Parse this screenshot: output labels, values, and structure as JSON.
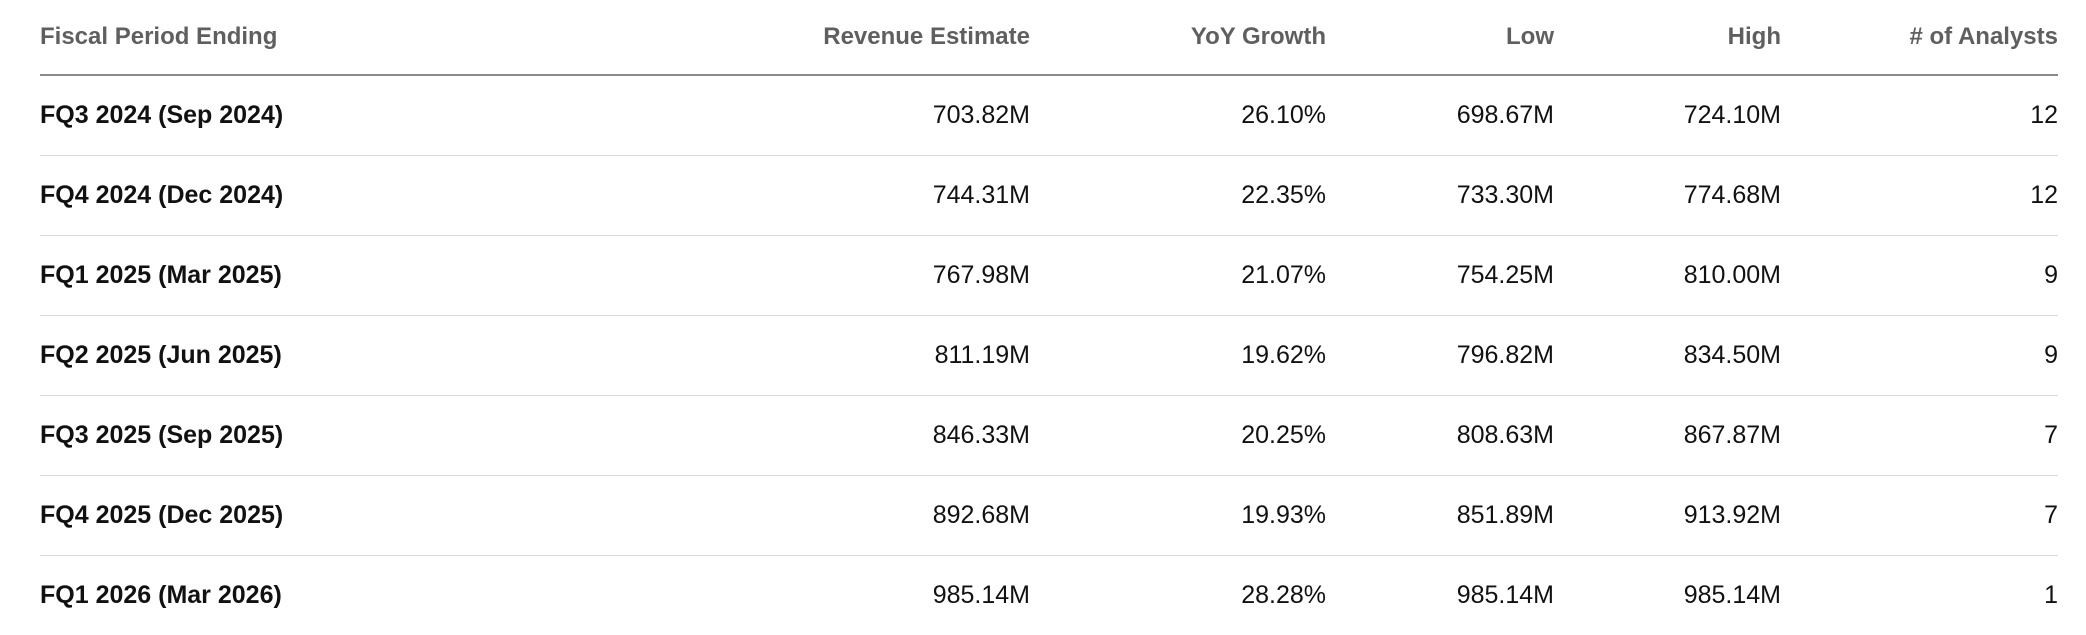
{
  "table": {
    "headers": [
      "Fiscal Period Ending",
      "Revenue Estimate",
      "YoY Growth",
      "Low",
      "High",
      "# of Analysts"
    ],
    "rows": [
      [
        "FQ3 2024 (Sep 2024)",
        "703.82M",
        "26.10%",
        "698.67M",
        "724.10M",
        "12"
      ],
      [
        "FQ4 2024 (Dec 2024)",
        "744.31M",
        "22.35%",
        "733.30M",
        "774.68M",
        "12"
      ],
      [
        "FQ1 2025 (Mar 2025)",
        "767.98M",
        "21.07%",
        "754.25M",
        "810.00M",
        "9"
      ],
      [
        "FQ2 2025 (Jun 2025)",
        "811.19M",
        "19.62%",
        "796.82M",
        "834.50M",
        "9"
      ],
      [
        "FQ3 2025 (Sep 2025)",
        "846.33M",
        "20.25%",
        "808.63M",
        "867.87M",
        "7"
      ],
      [
        "FQ4 2025 (Dec 2025)",
        "892.68M",
        "19.93%",
        "851.89M",
        "913.92M",
        "7"
      ],
      [
        "FQ1 2026 (Mar 2026)",
        "985.14M",
        "28.28%",
        "985.14M",
        "985.14M",
        "1"
      ]
    ]
  }
}
